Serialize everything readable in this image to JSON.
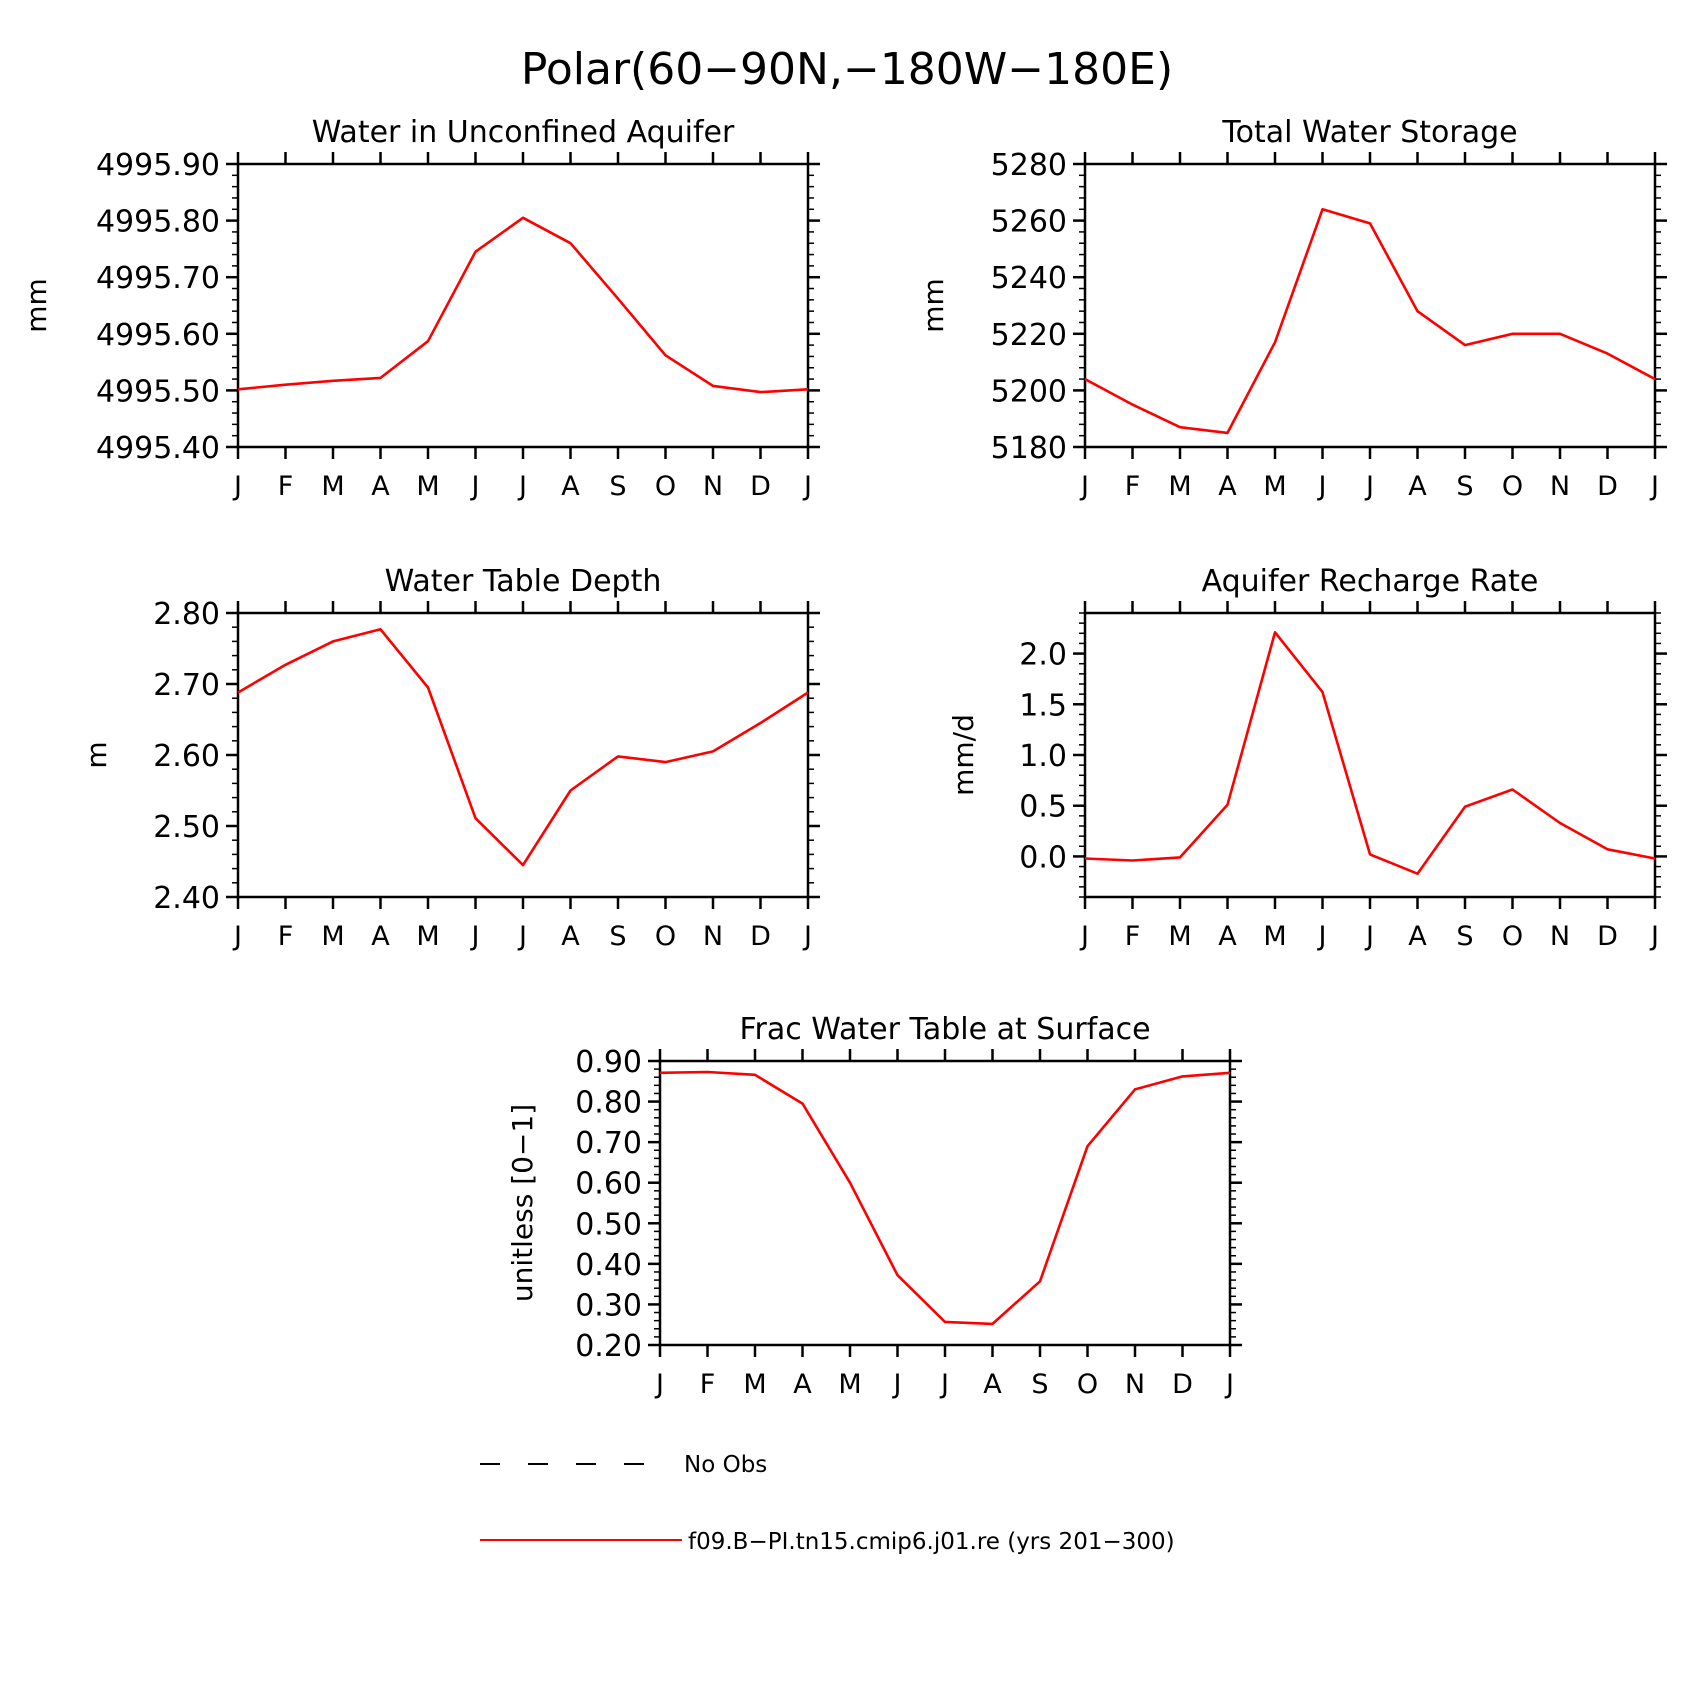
{
  "title": "Polar(60−90N,−180W−180E)",
  "months": [
    "J",
    "F",
    "M",
    "A",
    "M",
    "J",
    "J",
    "A",
    "S",
    "O",
    "N",
    "D",
    "J"
  ],
  "chart_data": [
    {
      "type": "line",
      "title": "Water in Unconfined Aquifer",
      "ylabel": "mm",
      "ylim": [
        4995.4,
        4995.9
      ],
      "yticks": [
        4995.4,
        4995.5,
        4995.6,
        4995.7,
        4995.8,
        4995.9
      ],
      "ytick_labels": [
        "4995.40",
        "4995.50",
        "4995.60",
        "4995.70",
        "4995.80",
        "4995.90"
      ],
      "x": [
        "J",
        "F",
        "M",
        "A",
        "M",
        "J",
        "J",
        "A",
        "S",
        "O",
        "N",
        "D",
        "J"
      ],
      "series": [
        {
          "values": [
            4995.502,
            4995.51,
            4995.517,
            4995.522,
            4995.587,
            4995.745,
            4995.805,
            4995.76,
            4995.662,
            4995.562,
            4995.508,
            4995.497,
            4995.502
          ]
        }
      ]
    },
    {
      "type": "line",
      "title": "Total Water Storage",
      "ylabel": "mm",
      "ylim": [
        5180,
        5280
      ],
      "yticks": [
        5180,
        5200,
        5220,
        5240,
        5260,
        5280
      ],
      "ytick_labels": [
        "5180",
        "5200",
        "5220",
        "5240",
        "5260",
        "5280"
      ],
      "x": [
        "J",
        "F",
        "M",
        "A",
        "M",
        "J",
        "J",
        "A",
        "S",
        "O",
        "N",
        "D",
        "J"
      ],
      "series": [
        {
          "values": [
            5204,
            5195,
            5187,
            5185,
            5217,
            5264,
            5259,
            5228,
            5216,
            5220,
            5220,
            5213,
            5204
          ]
        }
      ]
    },
    {
      "type": "line",
      "title": "Water Table Depth",
      "ylabel": "m",
      "ylim": [
        2.4,
        2.8
      ],
      "yticks": [
        2.4,
        2.5,
        2.6,
        2.7,
        2.8
      ],
      "ytick_labels": [
        "2.40",
        "2.50",
        "2.60",
        "2.70",
        "2.80"
      ],
      "x": [
        "J",
        "F",
        "M",
        "A",
        "M",
        "J",
        "J",
        "A",
        "S",
        "O",
        "N",
        "D",
        "J"
      ],
      "series": [
        {
          "values": [
            2.688,
            2.727,
            2.76,
            2.777,
            2.695,
            2.511,
            2.445,
            2.55,
            2.598,
            2.59,
            2.605,
            2.645,
            2.688
          ]
        }
      ]
    },
    {
      "type": "line",
      "title": "Aquifer Recharge Rate",
      "ylabel": "mm/d",
      "ylim": [
        -0.4,
        2.4
      ],
      "yticks": [
        0.0,
        0.5,
        1.0,
        1.5,
        2.0
      ],
      "ytick_labels": [
        "0.0",
        "0.5",
        "1.0",
        "1.5",
        "2.0"
      ],
      "x": [
        "J",
        "F",
        "M",
        "A",
        "M",
        "J",
        "J",
        "A",
        "S",
        "O",
        "N",
        "D",
        "J"
      ],
      "series": [
        {
          "values": [
            -0.02,
            -0.04,
            -0.01,
            0.51,
            2.21,
            1.62,
            0.02,
            -0.17,
            0.49,
            0.66,
            0.33,
            0.07,
            -0.02
          ]
        }
      ]
    },
    {
      "type": "line",
      "title": "Frac Water Table at Surface",
      "ylabel": "unitless [0−1]",
      "ylim": [
        0.2,
        0.9
      ],
      "yticks": [
        0.2,
        0.3,
        0.4,
        0.5,
        0.6,
        0.7,
        0.8,
        0.9
      ],
      "ytick_labels": [
        "0.20",
        "0.30",
        "0.40",
        "0.50",
        "0.60",
        "0.70",
        "0.80",
        "0.90"
      ],
      "x": [
        "J",
        "F",
        "M",
        "A",
        "M",
        "J",
        "J",
        "A",
        "S",
        "O",
        "N",
        "D",
        "J"
      ],
      "series": [
        {
          "values": [
            0.871,
            0.873,
            0.866,
            0.795,
            0.6,
            0.372,
            0.257,
            0.252,
            0.357,
            0.69,
            0.83,
            0.862,
            0.871
          ]
        }
      ]
    }
  ],
  "legend": {
    "items": [
      {
        "label": "No Obs",
        "style": "dashed",
        "color": "#000000"
      },
      {
        "label": "f09.B−PI.tn15.cmip6.j01.re (yrs 201−300)",
        "style": "solid",
        "color": "#ff0000"
      }
    ]
  }
}
